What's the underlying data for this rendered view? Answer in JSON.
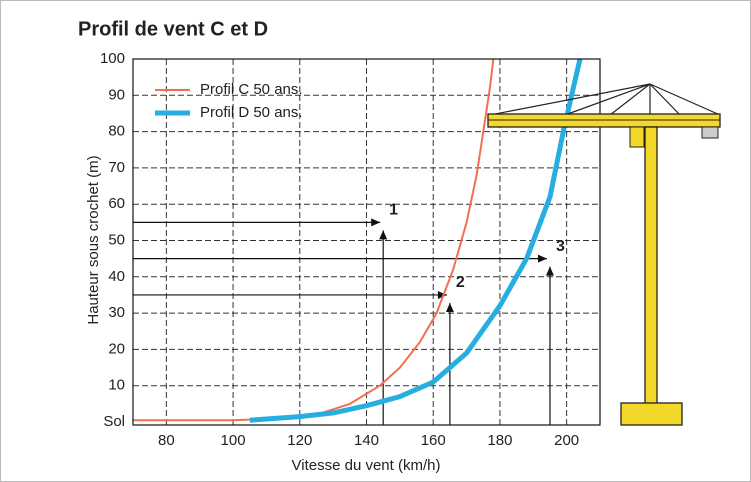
{
  "chart_data": {
    "type": "line",
    "title": "Profil de vent C et D",
    "x_label": "Vitesse du vent (km/h)",
    "y_label": "Hauteur sous crochet (m)",
    "xlim": [
      70,
      210
    ],
    "ylim": [
      0,
      100
    ],
    "xticks": [
      80,
      100,
      120,
      140,
      160,
      180,
      200
    ],
    "yticks": [
      {
        "value": 0,
        "label": "Sol"
      },
      10,
      20,
      30,
      40,
      50,
      60,
      70,
      80,
      90,
      100
    ],
    "grid": true,
    "legend": "top-left",
    "series": [
      {
        "name": "Profil C 50 ans.",
        "color": "#f07050",
        "width": 2,
        "x": [
          70,
          100,
          115,
          125,
          135,
          144,
          150,
          156,
          161,
          166,
          170,
          173,
          175,
          177,
          178
        ],
        "values": [
          0.5,
          0.5,
          1,
          2,
          5,
          10,
          15,
          22,
          30,
          42,
          55,
          68,
          80,
          92,
          100
        ]
      },
      {
        "name": "Profil D 50 ans.",
        "color": "#27aee0",
        "width": 5,
        "x": [
          105,
          120,
          130,
          140,
          150,
          160,
          170,
          180,
          188,
          195,
          199,
          202,
          204
        ],
        "values": [
          0.5,
          1.5,
          2.5,
          4.5,
          7,
          11,
          19,
          32,
          45,
          62,
          80,
          92,
          100
        ]
      }
    ],
    "annotations": [
      {
        "label": "1",
        "x": 145,
        "y": 55
      },
      {
        "label": "2",
        "x": 165,
        "y": 35
      },
      {
        "label": "3",
        "x": 195,
        "y": 45
      }
    ]
  }
}
